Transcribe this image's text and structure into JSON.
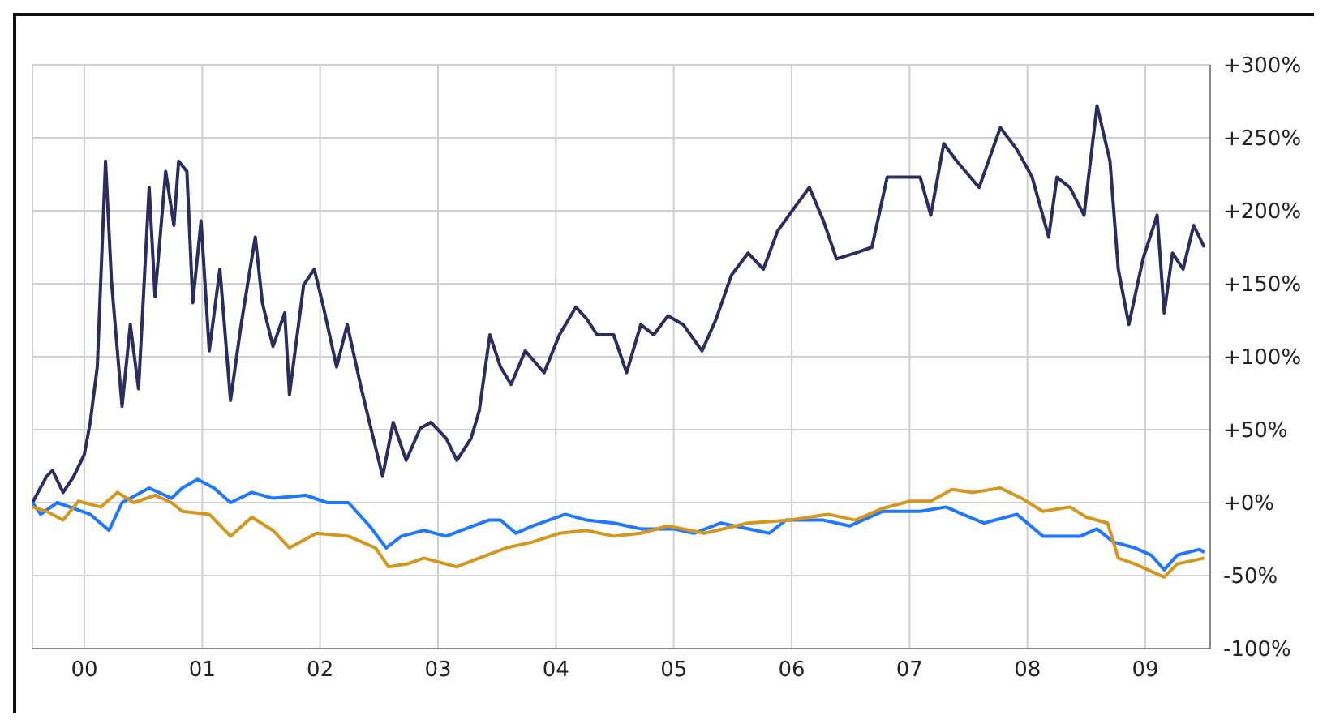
{
  "chart_data": {
    "type": "line",
    "xlim": [
      -0.44,
      9.55
    ],
    "xticks": [
      {
        "value": 0,
        "label": "00"
      },
      {
        "value": 1,
        "label": "01"
      },
      {
        "value": 2,
        "label": "02"
      },
      {
        "value": 3,
        "label": "03"
      },
      {
        "value": 4,
        "label": "04"
      },
      {
        "value": 5,
        "label": "05"
      },
      {
        "value": 6,
        "label": "06"
      },
      {
        "value": 7,
        "label": "07"
      },
      {
        "value": 8,
        "label": "08"
      },
      {
        "value": 9,
        "label": "09"
      }
    ],
    "ylim": [
      -100,
      300
    ],
    "yticks": [
      {
        "value": -100,
        "label": "-100%"
      },
      {
        "value": -50,
        "label": "-50%"
      },
      {
        "value": 0,
        "label": "+0%"
      },
      {
        "value": 50,
        "label": "+50%"
      },
      {
        "value": 100,
        "label": "+100%"
      },
      {
        "value": 150,
        "label": "+150%"
      },
      {
        "value": 200,
        "label": "+200%"
      },
      {
        "value": 250,
        "label": "+250%"
      },
      {
        "value": 300,
        "label": "+300%"
      }
    ],
    "grid": true,
    "marker": "none",
    "line_style": "solid",
    "series": [
      {
        "color": "#2b2d5e",
        "x": [
          -0.44,
          -0.32,
          -0.27,
          -0.18,
          -0.09,
          0,
          0.05,
          0.11,
          0.18,
          0.23,
          0.32,
          0.39,
          0.46,
          0.55,
          0.6,
          0.69,
          0.76,
          0.8,
          0.87,
          0.92,
          0.99,
          1.06,
          1.15,
          1.24,
          1.33,
          1.45,
          1.51,
          1.6,
          1.7,
          1.74,
          1.86,
          1.95,
          2.02,
          2.14,
          2.23,
          2.35,
          2.44,
          2.53,
          2.62,
          2.73,
          2.85,
          2.94,
          3.07,
          3.16,
          3.28,
          3.35,
          3.44,
          3.53,
          3.62,
          3.74,
          3.9,
          4.03,
          4.17,
          4.26,
          4.35,
          4.49,
          4.6,
          4.72,
          4.83,
          4.95,
          5.08,
          5.24,
          5.36,
          5.49,
          5.63,
          5.76,
          5.88,
          6.04,
          6.15,
          6.27,
          6.38,
          6.54,
          6.68,
          6.74,
          6.81,
          6.95,
          7.09,
          7.18,
          7.29,
          7.4,
          7.59,
          7.77,
          7.91,
          8.04,
          8.18,
          8.25,
          8.36,
          8.48,
          8.59,
          8.7,
          8.77,
          8.86,
          8.98,
          9.1,
          9.16,
          9.23,
          9.32,
          9.41,
          9.5
        ],
        "values": [
          0,
          18,
          22,
          7,
          18,
          33,
          55,
          93,
          234,
          152,
          66,
          122,
          78,
          216,
          141,
          227,
          190,
          234,
          227,
          137,
          193,
          104,
          160,
          70,
          122,
          182,
          137,
          107,
          130,
          74,
          149,
          160,
          137,
          93,
          122,
          78,
          48,
          18,
          55,
          29,
          51,
          55,
          44,
          29,
          44,
          63,
          115,
          93,
          81,
          104,
          89,
          115,
          134,
          126,
          115,
          115,
          89,
          122,
          115,
          128,
          122,
          104,
          126,
          156,
          171,
          160,
          186,
          204,
          216,
          193,
          167,
          171,
          175,
          197,
          223,
          223,
          223,
          197,
          246,
          234,
          216,
          257,
          242,
          223,
          182,
          223,
          216,
          197,
          272,
          234,
          160,
          122,
          167,
          197,
          130,
          171,
          160,
          190,
          175
        ]
      },
      {
        "color": "#1f78ff",
        "x": [
          -0.44,
          -0.37,
          -0.23,
          -0.09,
          0.05,
          0.21,
          0.32,
          0.55,
          0.74,
          0.83,
          0.96,
          1.1,
          1.24,
          1.42,
          1.6,
          1.88,
          2.06,
          2.24,
          2.42,
          2.56,
          2.69,
          2.88,
          3.07,
          3.2,
          3.43,
          3.53,
          3.66,
          3.8,
          4.08,
          4.26,
          4.49,
          4.72,
          5.0,
          5.17,
          5.4,
          5.81,
          5.95,
          6.27,
          6.49,
          6.77,
          7.09,
          7.31,
          7.45,
          7.63,
          7.91,
          8.13,
          8.45,
          8.59,
          8.73,
          8.91,
          9.05,
          9.16,
          9.27,
          9.46,
          9.5
        ],
        "values": [
          0,
          -8,
          0,
          -4,
          -8,
          -19,
          0,
          10,
          3,
          10,
          16,
          10,
          0,
          7,
          3,
          5,
          0,
          0,
          -16,
          -31,
          -23,
          -19,
          -23,
          -19,
          -12,
          -12,
          -21,
          -16,
          -8,
          -12,
          -14,
          -18,
          -18,
          -21,
          -14,
          -21,
          -12,
          -12,
          -16,
          -6,
          -6,
          -3,
          -8,
          -14,
          -8,
          -23,
          -23,
          -18,
          -27,
          -31,
          -36,
          -46,
          -36,
          -32,
          -34
        ]
      },
      {
        "color": "#d4961e",
        "x": [
          -0.44,
          -0.32,
          -0.18,
          -0.05,
          0.14,
          0.28,
          0.42,
          0.6,
          0.74,
          0.83,
          1.06,
          1.24,
          1.42,
          1.6,
          1.74,
          1.97,
          2.24,
          2.47,
          2.58,
          2.74,
          2.88,
          3.16,
          3.35,
          3.58,
          3.8,
          4.03,
          4.26,
          4.49,
          4.72,
          4.95,
          5.26,
          5.63,
          5.99,
          6.31,
          6.54,
          6.77,
          7.0,
          7.18,
          7.36,
          7.54,
          7.77,
          7.95,
          8.13,
          8.36,
          8.5,
          8.68,
          8.77,
          8.91,
          9.16,
          9.27,
          9.5
        ],
        "values": [
          -3,
          -6,
          -12,
          1,
          -3,
          7,
          0,
          5,
          0,
          -6,
          -8,
          -23,
          -10,
          -19,
          -31,
          -21,
          -23,
          -31,
          -44,
          -42,
          -38,
          -44,
          -38,
          -31,
          -27,
          -21,
          -19,
          -23,
          -21,
          -16,
          -21,
          -14,
          -12,
          -8,
          -12,
          -4,
          1,
          1,
          9,
          7,
          10,
          3,
          -6,
          -3,
          -10,
          -14,
          -38,
          -42,
          -51,
          -42,
          -38
        ]
      }
    ]
  }
}
